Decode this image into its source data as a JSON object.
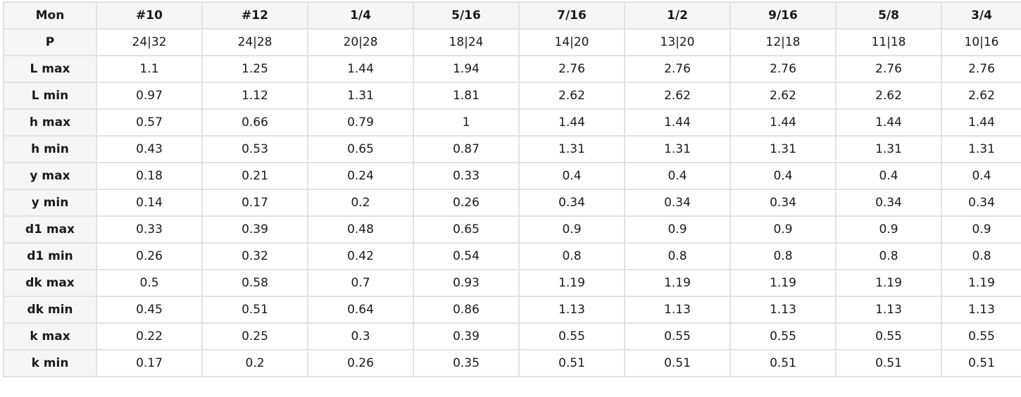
{
  "table": {
    "corner_label": "Mon",
    "columns": [
      "#10",
      "#12",
      "1/4",
      "5/16",
      "7/16",
      "1/2",
      "9/16",
      "5/8",
      "3/4"
    ],
    "rows": [
      {
        "label": "P",
        "values": [
          "24|32",
          "24|28",
          "20|28",
          "18|24",
          "14|20",
          "13|20",
          "12|18",
          "11|18",
          "10|16"
        ]
      },
      {
        "label": "L max",
        "values": [
          "1.1",
          "1.25",
          "1.44",
          "1.94",
          "2.76",
          "2.76",
          "2.76",
          "2.76",
          "2.76"
        ]
      },
      {
        "label": "L min",
        "values": [
          "0.97",
          "1.12",
          "1.31",
          "1.81",
          "2.62",
          "2.62",
          "2.62",
          "2.62",
          "2.62"
        ]
      },
      {
        "label": "h max",
        "values": [
          "0.57",
          "0.66",
          "0.79",
          "1",
          "1.44",
          "1.44",
          "1.44",
          "1.44",
          "1.44"
        ]
      },
      {
        "label": "h min",
        "values": [
          "0.43",
          "0.53",
          "0.65",
          "0.87",
          "1.31",
          "1.31",
          "1.31",
          "1.31",
          "1.31"
        ]
      },
      {
        "label": "y max",
        "values": [
          "0.18",
          "0.21",
          "0.24",
          "0.33",
          "0.4",
          "0.4",
          "0.4",
          "0.4",
          "0.4"
        ]
      },
      {
        "label": "y min",
        "values": [
          "0.14",
          "0.17",
          "0.2",
          "0.26",
          "0.34",
          "0.34",
          "0.34",
          "0.34",
          "0.34"
        ]
      },
      {
        "label": "d1 max",
        "values": [
          "0.33",
          "0.39",
          "0.48",
          "0.65",
          "0.9",
          "0.9",
          "0.9",
          "0.9",
          "0.9"
        ]
      },
      {
        "label": "d1 min",
        "values": [
          "0.26",
          "0.32",
          "0.42",
          "0.54",
          "0.8",
          "0.8",
          "0.8",
          "0.8",
          "0.8"
        ]
      },
      {
        "label": "dk max",
        "values": [
          "0.5",
          "0.58",
          "0.7",
          "0.93",
          "1.19",
          "1.19",
          "1.19",
          "1.19",
          "1.19"
        ]
      },
      {
        "label": "dk min",
        "values": [
          "0.45",
          "0.51",
          "0.64",
          "0.86",
          "1.13",
          "1.13",
          "1.13",
          "1.13",
          "1.13"
        ]
      },
      {
        "label": "k max",
        "values": [
          "0.22",
          "0.25",
          "0.3",
          "0.39",
          "0.55",
          "0.55",
          "0.55",
          "0.55",
          "0.55"
        ]
      },
      {
        "label": "k min",
        "values": [
          "0.17",
          "0.2",
          "0.26",
          "0.35",
          "0.51",
          "0.51",
          "0.51",
          "0.51",
          "0.51"
        ]
      }
    ]
  }
}
